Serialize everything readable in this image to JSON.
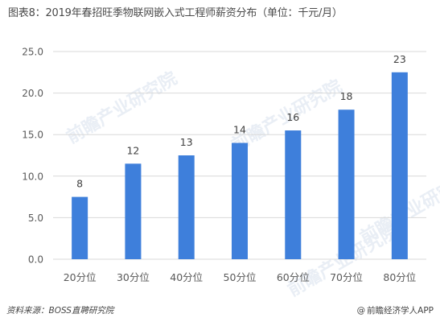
{
  "title": "图表8：2019年春招旺季物联网嵌入式工程师薪资分布（单位：千元/月）",
  "footer": {
    "source": "资料来源：BOSS直聘研究院",
    "brand": "前瞻经济学人APP",
    "brand_icon": "at-sign-icon"
  },
  "watermark": "前瞻产业研究院",
  "colors": {
    "bar": "#3E7FDB",
    "grid": "#d9d9d9",
    "axis_text": "#595959"
  },
  "chart_data": {
    "type": "bar",
    "title": "图表8：2019年春招旺季物联网嵌入式工程师薪资分布（单位：千元/月）",
    "categories": [
      "20分位",
      "30分位",
      "40分位",
      "50分位",
      "60分位",
      "70分位",
      "80分位"
    ],
    "values": [
      7.5,
      11.5,
      12.5,
      14,
      15.5,
      18,
      22.5
    ],
    "data_labels": [
      "8",
      "12",
      "13",
      "14",
      "16",
      "18",
      "23"
    ],
    "ylim": [
      0,
      25
    ],
    "yticks": [
      "0.0",
      "5.0",
      "10.0",
      "15.0",
      "20.0",
      "25.0"
    ],
    "xlabel": "",
    "ylabel": "",
    "grid": true,
    "legend": "none"
  }
}
